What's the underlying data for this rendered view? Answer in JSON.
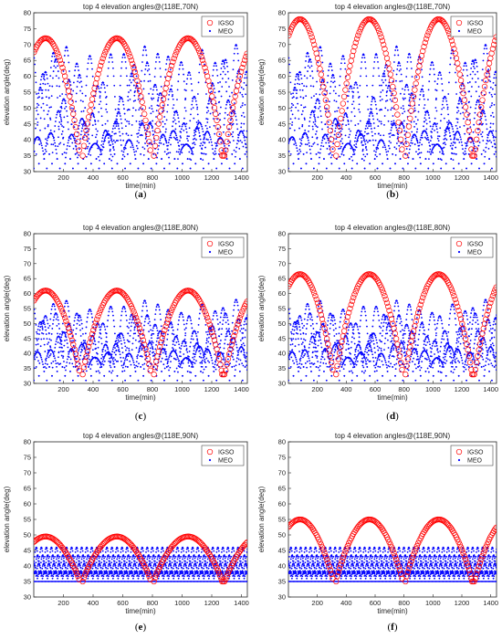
{
  "chart_data": [
    {
      "type": "scatter",
      "panel_letter": "a",
      "title": "top 4 elevation angles@(118E,70N)",
      "xlabel": "time(min)",
      "ylabel": "elevation angle(deg)",
      "xlim": [
        0,
        1440
      ],
      "ylim": [
        30,
        80
      ],
      "xticks": [
        200,
        400,
        600,
        800,
        1000,
        1200,
        1400
      ],
      "yticks": [
        30,
        35,
        40,
        45,
        50,
        55,
        60,
        65,
        70,
        75,
        80
      ],
      "grid": false,
      "legend_position": "top-right",
      "series": [
        {
          "name": "IGSO",
          "marker": "circle",
          "color": "#ff0000",
          "peak_deg": 72,
          "min_deg": 35,
          "peak_times_min": [
            80,
            560,
            1040
          ]
        },
        {
          "name": "MEO",
          "marker": "dot",
          "color": "#0000ff",
          "upper_envelope_deg": [
            70,
            60
          ],
          "lower_envelope_deg": [
            31,
            33
          ]
        }
      ]
    },
    {
      "type": "scatter",
      "panel_letter": "b",
      "title": "top 4 elevation angles@(118E,70N)",
      "xlabel": "time(min)",
      "ylabel": "elevation angle(deg)",
      "xlim": [
        0,
        1440
      ],
      "ylim": [
        30,
        80
      ],
      "xticks": [
        200,
        400,
        600,
        800,
        1000,
        1200,
        1400
      ],
      "yticks": [
        30,
        35,
        40,
        45,
        50,
        55,
        60,
        65,
        70,
        75,
        80
      ],
      "grid": false,
      "legend_position": "top-right",
      "series": [
        {
          "name": "IGSO",
          "marker": "circle",
          "color": "#ff0000",
          "peak_deg": 78,
          "min_deg": 35,
          "peak_times_min": [
            80,
            560,
            1040
          ]
        },
        {
          "name": "MEO",
          "marker": "dot",
          "color": "#0000ff",
          "upper_envelope_deg": [
            70,
            60
          ],
          "lower_envelope_deg": [
            31,
            33
          ]
        }
      ]
    },
    {
      "type": "scatter",
      "panel_letter": "c",
      "title": "top 4 elevation angles@(118E,80N)",
      "xlabel": "time(min)",
      "ylabel": "elevation angle(deg)",
      "xlim": [
        0,
        1440
      ],
      "ylim": [
        30,
        80
      ],
      "xticks": [
        200,
        400,
        600,
        800,
        1000,
        1200,
        1400
      ],
      "yticks": [
        30,
        35,
        40,
        45,
        50,
        55,
        60,
        65,
        70,
        75,
        80
      ],
      "grid": false,
      "legend_position": "top-right",
      "series": [
        {
          "name": "IGSO",
          "marker": "circle",
          "color": "#ff0000",
          "peak_deg": 61,
          "min_deg": 33,
          "peak_times_min": [
            80,
            560,
            1040
          ]
        },
        {
          "name": "MEO",
          "marker": "dot",
          "color": "#0000ff",
          "upper_envelope_deg": [
            58,
            54
          ],
          "lower_envelope_deg": [
            31,
            33
          ]
        }
      ]
    },
    {
      "type": "scatter",
      "panel_letter": "d",
      "title": "top 4 elevation angles@(118E,80N)",
      "xlabel": "time(min)",
      "ylabel": "elevation angle(deg)",
      "xlim": [
        0,
        1440
      ],
      "ylim": [
        30,
        80
      ],
      "xticks": [
        200,
        400,
        600,
        800,
        1000,
        1200,
        1400
      ],
      "yticks": [
        30,
        35,
        40,
        45,
        50,
        55,
        60,
        65,
        70,
        75,
        80
      ],
      "grid": false,
      "legend_position": "top-right",
      "series": [
        {
          "name": "IGSO",
          "marker": "circle",
          "color": "#ff0000",
          "peak_deg": 66.5,
          "min_deg": 33,
          "peak_times_min": [
            80,
            560,
            1040
          ]
        },
        {
          "name": "MEO",
          "marker": "dot",
          "color": "#0000ff",
          "upper_envelope_deg": [
            58,
            54
          ],
          "lower_envelope_deg": [
            31,
            33
          ]
        }
      ]
    },
    {
      "type": "scatter",
      "panel_letter": "e",
      "title": "top 4 elevation angles@(118E,90N)",
      "xlabel": "time(min)",
      "ylabel": "elevation angle(deg)",
      "xlim": [
        0,
        1440
      ],
      "ylim": [
        30,
        80
      ],
      "xticks": [
        200,
        400,
        600,
        800,
        1000,
        1200,
        1400
      ],
      "yticks": [
        30,
        35,
        40,
        45,
        50,
        55,
        60,
        65,
        70,
        75,
        80
      ],
      "grid": false,
      "legend_position": "top-right",
      "series": [
        {
          "name": "IGSO",
          "marker": "circle",
          "color": "#ff0000",
          "peak_deg": 49.5,
          "min_deg": 35,
          "peak_times_min": [
            80,
            560,
            1040
          ]
        },
        {
          "name": "MEO",
          "marker": "dot",
          "color": "#0000ff",
          "upper_envelope_deg": [
            46,
            46
          ],
          "lower_envelope_deg": [
            35,
            35
          ]
        }
      ]
    },
    {
      "type": "scatter",
      "panel_letter": "f",
      "title": "top 4 elevation angles@(118E,90N)",
      "xlabel": "time(min)",
      "ylabel": "elevation angle(deg)",
      "xlim": [
        0,
        1440
      ],
      "ylim": [
        30,
        80
      ],
      "xticks": [
        200,
        400,
        600,
        800,
        1000,
        1200,
        1400
      ],
      "yticks": [
        30,
        35,
        40,
        45,
        50,
        55,
        60,
        65,
        70,
        75,
        80
      ],
      "grid": false,
      "legend_position": "top-right",
      "series": [
        {
          "name": "IGSO",
          "marker": "circle",
          "color": "#ff0000",
          "peak_deg": 55,
          "min_deg": 35,
          "peak_times_min": [
            80,
            560,
            1040
          ]
        },
        {
          "name": "MEO",
          "marker": "dot",
          "color": "#0000ff",
          "upper_envelope_deg": [
            46,
            46
          ],
          "lower_envelope_deg": [
            35,
            35
          ]
        }
      ]
    }
  ],
  "captions": [
    "(a)",
    "(b)",
    "(c)",
    "(d)",
    "(e)",
    "(f)"
  ]
}
